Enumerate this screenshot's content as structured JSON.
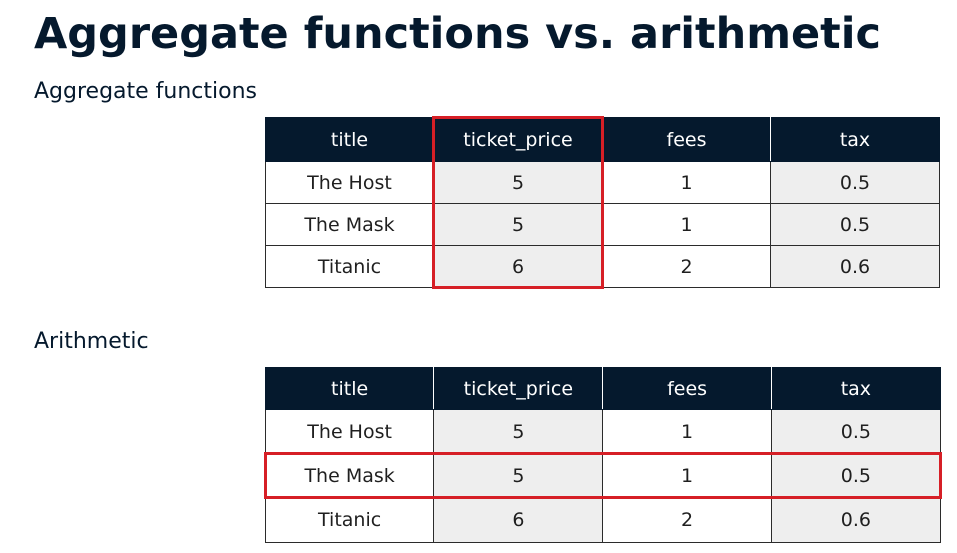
{
  "title": "Aggregate functions vs. arithmetic",
  "sections": {
    "aggregate": {
      "label": "Aggregate functions",
      "headers": [
        "title",
        "ticket_price",
        "fees",
        "tax"
      ],
      "rows": [
        [
          "The Host",
          "5",
          "1",
          "0.5"
        ],
        [
          "The Mask",
          "5",
          "1",
          "0.5"
        ],
        [
          "Titanic",
          "6",
          "2",
          "0.6"
        ]
      ]
    },
    "arithmetic": {
      "label": "Arithmetic",
      "headers": [
        "title",
        "ticket_price",
        "fees",
        "tax"
      ],
      "rows": [
        [
          "The Host",
          "5",
          "1",
          "0.5"
        ],
        [
          "The Mask",
          "5",
          "1",
          "0.5"
        ],
        [
          "Titanic",
          "6",
          "2",
          "0.6"
        ]
      ]
    }
  },
  "colors": {
    "header_bg": "#05192d",
    "highlight": "#d61f26",
    "shaded_cell": "#eeeeee"
  }
}
